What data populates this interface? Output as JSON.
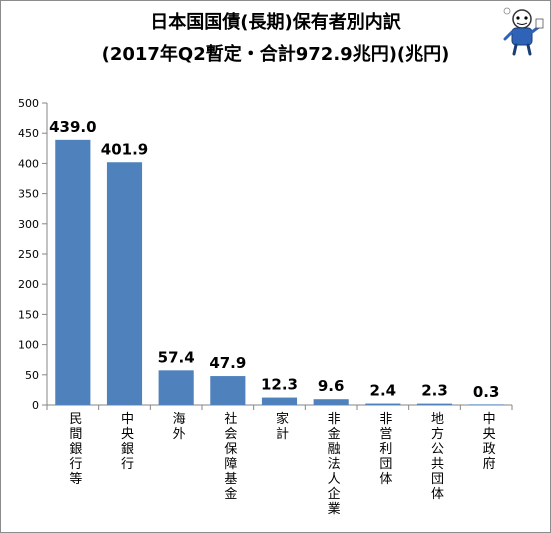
{
  "chart_data": {
    "type": "bar",
    "title": "日本国国債(長期)保有者別内訳",
    "subtitle": "(2017年Q2暫定・合計972.9兆円)(兆円)",
    "xlabel": "",
    "ylabel": "",
    "ylim": [
      0,
      500
    ],
    "yticks": [
      "0",
      "50",
      "100",
      "150",
      "200",
      "250",
      "300",
      "350",
      "400",
      "450",
      "500"
    ],
    "grid": false,
    "legend": "none",
    "bar_color": "#4f81bd",
    "categories": [
      "民間銀行等",
      "中央銀行",
      "海外",
      "社会保障基金",
      "家計",
      "非金融法人企業",
      "非営利団体",
      "地方公共団体",
      "中央政府"
    ],
    "values": [
      439.0,
      401.9,
      57.4,
      47.9,
      12.3,
      9.6,
      2.4,
      2.3,
      0.3
    ],
    "value_labels": [
      "439.0",
      "401.9",
      "57.4",
      "47.9",
      "12.3",
      "9.6",
      "2.4",
      "2.3",
      "0.3"
    ]
  }
}
